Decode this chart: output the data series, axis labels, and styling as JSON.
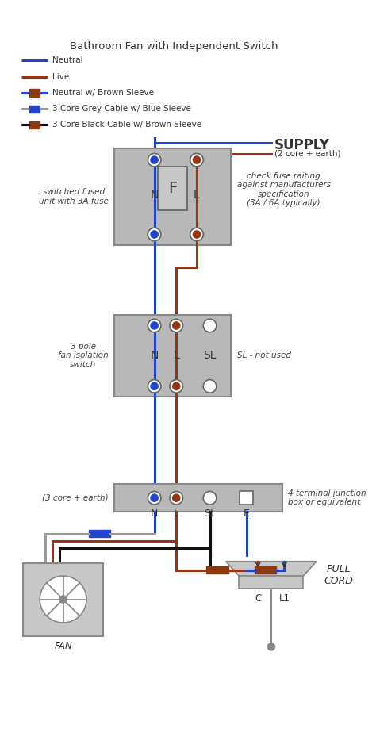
{
  "title": "Bathroom Fan with Independent Switch",
  "bg_color": "#ffffff",
  "blue": "#2244cc",
  "red": "#993311",
  "grey": "#999999",
  "black": "#111111",
  "brown": "#8b3a10",
  "comp_fill": "#b8b8b8",
  "comp_edge": "#888888",
  "tc": "#333333",
  "ic": "#444444",
  "legend": [
    {
      "label": "Neutral",
      "lc": "#2244cc",
      "sc": null
    },
    {
      "label": "Live",
      "lc": "#993311",
      "sc": null
    },
    {
      "label": "Neutral w/ Brown Sleeve",
      "lc": "#2244cc",
      "sc": "#8b3a10"
    },
    {
      "label": "3 Core Grey Cable w/ Blue Sleeve",
      "lc": "#999999",
      "sc": "#2244cc"
    },
    {
      "label": "3 Core Black Cable w/ Brown Sleeve",
      "lc": "#111111",
      "sc": "#8b3a10"
    }
  ]
}
